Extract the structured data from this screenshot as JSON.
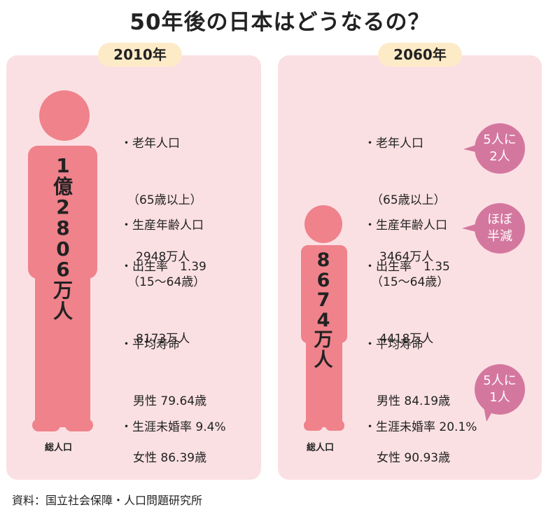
{
  "title": "50年後の日本はどうなるの？",
  "left": {
    "year": "2010年",
    "population": [
      "1",
      "億",
      "2",
      "8",
      "0",
      "6",
      "万",
      "人"
    ],
    "total_label": "総人口",
    "elderly": [
      "・老年人口",
      "（65歳以上）",
      "2948万人"
    ],
    "working": [
      "・生産年齢人口",
      "（15〜64歳）",
      "8173万人"
    ],
    "birthrate": "・出生率　1.39",
    "life": [
      "・平均寿命",
      "男性 79.64歳",
      "女性 86.39歳"
    ],
    "unmarried": "・生涯未婚率 9.4%"
  },
  "right": {
    "year": "2060年",
    "population": [
      "8",
      "6",
      "7",
      "4",
      "万",
      "人"
    ],
    "total_label": "総人口",
    "elderly": [
      "・老年人口",
      "（65歳以上）",
      "3464万人"
    ],
    "working": [
      "・生産年齢人口",
      "（15〜64歳）",
      "4418万人"
    ],
    "birthrate": "・出生率　1.35",
    "life": [
      "・平均寿命",
      "男性 84.19歳",
      "女性 90.93歳"
    ],
    "unmarried": "・生涯未婚率 20.1%"
  },
  "bubbles": {
    "elderly": [
      "5人に",
      "2人"
    ],
    "working": [
      "ほぼ",
      "半減"
    ],
    "unmarried": [
      "5人に",
      "1人"
    ]
  },
  "colors": {
    "panel": "#fbe0e3",
    "figure": "#ef828b",
    "bubble": "#d4779f",
    "year_badge": "#fdebc8"
  },
  "source": "資料：国立社会保障・人口問題研究所"
}
